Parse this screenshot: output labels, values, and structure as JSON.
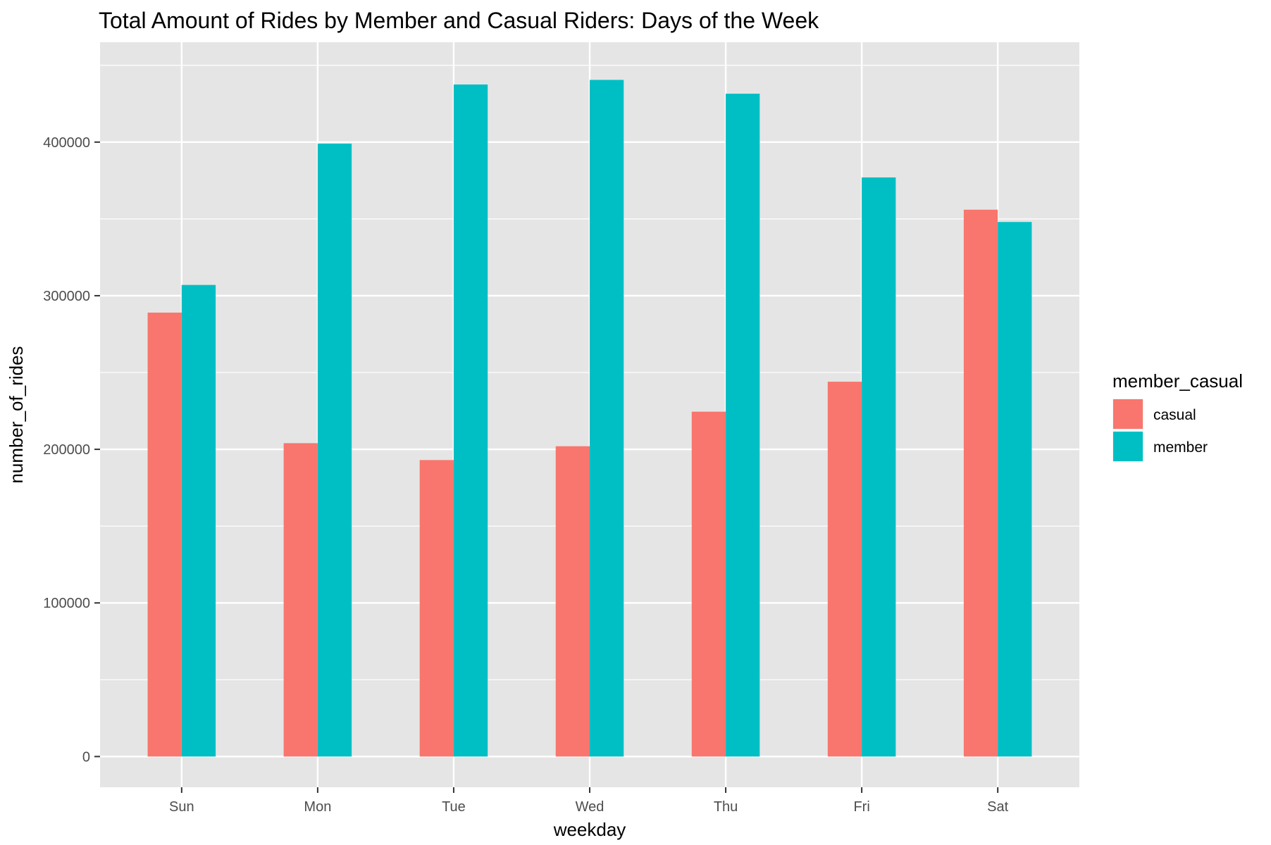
{
  "chart_data": {
    "type": "bar",
    "title": "Total Amount of Rides by Member and Casual Riders: Days of the Week",
    "xlabel": "weekday",
    "ylabel": "number_of_rides",
    "categories": [
      "Sun",
      "Mon",
      "Tue",
      "Wed",
      "Thu",
      "Fri",
      "Sat"
    ],
    "series": [
      {
        "name": "casual",
        "color": "#F8766D",
        "values": [
          289000,
          204000,
          193000,
          202000,
          224500,
          244000,
          356000
        ]
      },
      {
        "name": "member",
        "color": "#00BFC4",
        "values": [
          307000,
          399000,
          437500,
          440500,
          431500,
          377000,
          348000
        ]
      }
    ],
    "ylim": [
      -20000,
      465000
    ],
    "yticks": [
      0,
      100000,
      200000,
      300000,
      400000
    ],
    "ytick_labels": [
      "0",
      "100000",
      "200000",
      "300000",
      "400000"
    ],
    "grid": true,
    "legend": {
      "title": "member_casual",
      "position": "right"
    },
    "panel_background": "#E5E5E5",
    "grid_color": "#FFFFFF"
  }
}
